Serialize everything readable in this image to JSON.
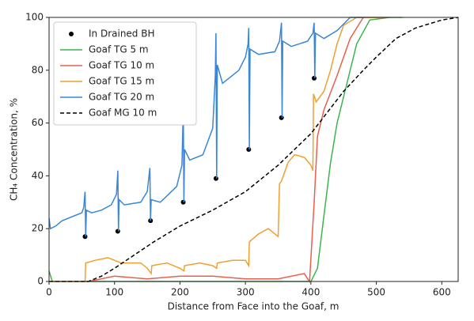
{
  "chart_data": {
    "type": "line",
    "xlabel": "Distance from Face into the Goaf, m",
    "ylabel": "CH₄ Concentration, %",
    "xlim": [
      0,
      625
    ],
    "ylim": [
      0,
      100
    ],
    "xticks": [
      0,
      100,
      200,
      300,
      400,
      500,
      600
    ],
    "yticks": [
      0,
      20,
      40,
      60,
      80,
      100
    ],
    "legend": "upper left",
    "series": [
      {
        "name": "In Drained BH",
        "color": "#000000",
        "style": "scatter",
        "x": [
          55,
          105,
          155,
          205,
          255,
          305,
          355,
          405
        ],
        "values": [
          17,
          19,
          23,
          30,
          39,
          50,
          62,
          77
        ]
      },
      {
        "name": "Goaf TG 5 m",
        "color": "#3cb44b",
        "style": "solid",
        "x": [
          0,
          5,
          400,
          410,
          420,
          430,
          440,
          455,
          470,
          490,
          520,
          540
        ],
        "values": [
          4,
          0,
          0,
          5,
          25,
          45,
          60,
          75,
          90,
          99,
          100,
          100
        ]
      },
      {
        "name": "Goaf TG 10 m",
        "color": "#e8604c",
        "style": "solid",
        "x": [
          0,
          60,
          100,
          150,
          200,
          250,
          300,
          350,
          390,
          395,
          398,
          405,
          410,
          420,
          440,
          460,
          480,
          520
        ],
        "values": [
          0,
          0,
          2,
          1,
          2,
          2,
          1,
          1,
          3,
          1,
          0,
          30,
          55,
          65,
          78,
          92,
          100,
          100
        ]
      },
      {
        "name": "Goaf TG 15 m",
        "color": "#f0a030",
        "style": "solid",
        "x": [
          0,
          55,
          56,
          70,
          90,
          110,
          140,
          150,
          156,
          157,
          180,
          200,
          206,
          207,
          230,
          250,
          256,
          257,
          280,
          300,
          305,
          306,
          320,
          335,
          350,
          352,
          355,
          365,
          375,
          390,
          400,
          403,
          404,
          408,
          420,
          430,
          440,
          450,
          470,
          510
        ],
        "values": [
          0,
          0,
          7,
          8,
          9,
          7,
          7,
          5,
          3,
          6,
          7,
          5,
          4,
          6,
          7,
          6,
          5,
          7,
          8,
          8,
          6,
          15,
          18,
          20,
          17,
          37,
          38,
          45,
          48,
          47,
          44,
          42,
          71,
          68,
          72,
          80,
          90,
          97,
          100,
          100
        ]
      },
      {
        "name": "Goaf TG 20 m",
        "color": "#3a86d8",
        "style": "solid",
        "x": [
          0,
          2,
          10,
          20,
          40,
          50,
          53,
          55,
          56,
          57,
          65,
          80,
          95,
          103,
          105,
          106,
          107,
          115,
          140,
          150,
          154,
          155,
          156,
          170,
          195,
          203,
          205,
          206,
          207,
          215,
          235,
          250,
          254,
          255,
          256,
          257,
          265,
          290,
          300,
          304,
          305,
          306,
          307,
          320,
          345,
          352,
          355,
          356,
          357,
          370,
          395,
          403,
          405,
          406,
          407,
          420,
          440,
          460,
          480
        ],
        "values": [
          24,
          20,
          21,
          23,
          25,
          26,
          28,
          34,
          17,
          27,
          26,
          27,
          29,
          33,
          42,
          19,
          31,
          29,
          30,
          34,
          43,
          23,
          31,
          30,
          36,
          44,
          66,
          30,
          50,
          46,
          48,
          58,
          78,
          94,
          39,
          82,
          75,
          80,
          85,
          90,
          96,
          50,
          88,
          86,
          87,
          91,
          98,
          62,
          91,
          89,
          91,
          94,
          98,
          77,
          94,
          92,
          95,
          100,
          100
        ]
      },
      {
        "name": "Goaf MG 10 m",
        "color": "#000000",
        "style": "dashed",
        "x": [
          0,
          60,
          80,
          100,
          130,
          160,
          200,
          250,
          300,
          350,
          400,
          450,
          480,
          500,
          530,
          560,
          600,
          625
        ],
        "values": [
          0,
          0,
          2,
          5,
          10,
          15,
          21,
          27,
          34,
          44,
          56,
          72,
          80,
          85,
          92,
          96,
          99,
          100
        ]
      }
    ]
  }
}
